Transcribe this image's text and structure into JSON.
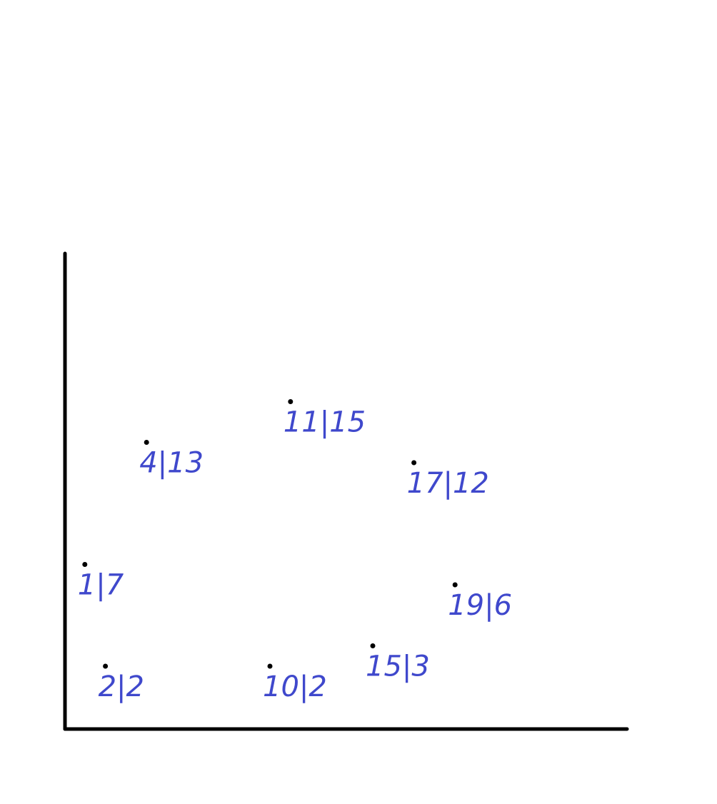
{
  "colors": {
    "axis": "#000000",
    "point": "#000000",
    "label": "#3f48cc",
    "background": "#ffffff"
  },
  "chart_data": {
    "type": "scatter",
    "title": "",
    "xlabel": "",
    "ylabel": "",
    "grid": false,
    "legend": "none",
    "points": [
      {
        "x": 1,
        "y": 7,
        "label": "1|7"
      },
      {
        "x": 2,
        "y": 2,
        "label": "2|2"
      },
      {
        "x": 4,
        "y": 13,
        "label": "4|13"
      },
      {
        "x": 10,
        "y": 2,
        "label": "10|2"
      },
      {
        "x": 11,
        "y": 15,
        "label": "11|15"
      },
      {
        "x": 15,
        "y": 3,
        "label": "15|3"
      },
      {
        "x": 17,
        "y": 12,
        "label": "17|12"
      },
      {
        "x": 19,
        "y": 6,
        "label": "19|6"
      }
    ]
  }
}
